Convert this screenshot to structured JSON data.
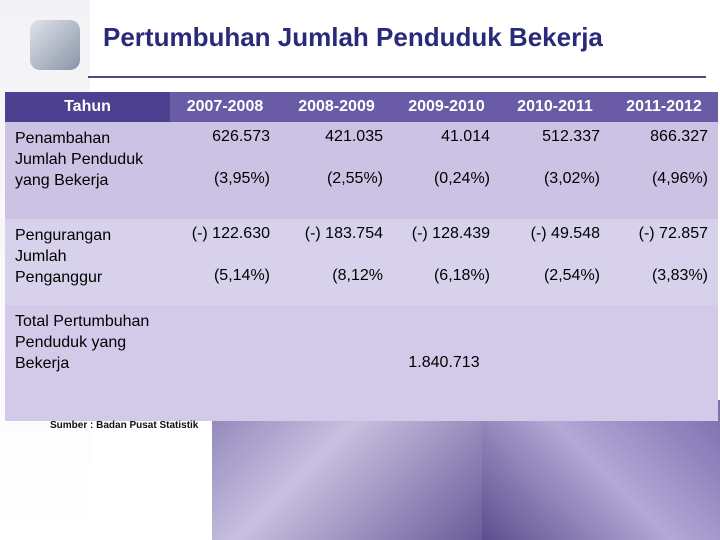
{
  "title": "Pertumbuhan Jumlah Penduduk Bekerja",
  "table": {
    "header": [
      "Tahun",
      "2007-2008",
      "2008-2009",
      "2009-2010",
      "2010-2011",
      "2011-2012"
    ],
    "rows": [
      {
        "label": "Penambahan Jumlah Penduduk yang Bekerja",
        "values": [
          "626.573",
          "421.035",
          "41.014",
          "512.337",
          "866.327"
        ],
        "percents": [
          "(3,95%)",
          "(2,55%)",
          "(0,24%)",
          "(3,02%)",
          "(4,96%)"
        ]
      },
      {
        "label": "Pengurangan Jumlah Penganggur",
        "values": [
          "(-) 122.630",
          "(-) 183.754",
          "(-) 128.439",
          "(-) 49.548",
          "(-) 72.857"
        ],
        "percents": [
          "(5,14%)",
          "(8,12%",
          "(6,18%)",
          "(2,54%)",
          "(3,83%)"
        ]
      },
      {
        "label": "Total Pertumbuhan Penduduk yang Bekerja",
        "total": "1.840.713"
      }
    ]
  },
  "source": "Sumber : Badan Pusat Statistik"
}
